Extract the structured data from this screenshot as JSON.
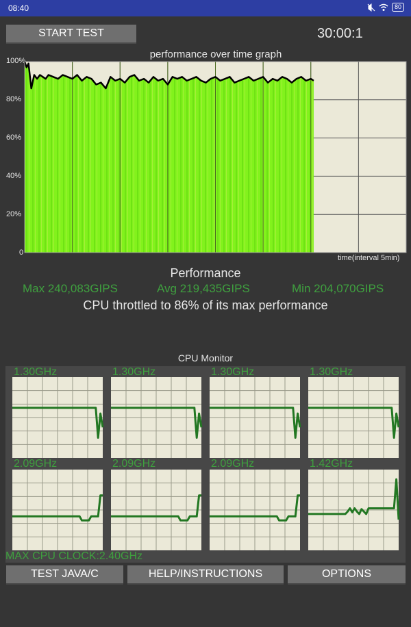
{
  "status_bar": {
    "time": "08:40",
    "battery": "80",
    "icons": [
      "mute-icon",
      "wifi-icon",
      "battery-icon"
    ]
  },
  "controls": {
    "start_label": "START TEST",
    "timer": "30:00:1"
  },
  "chart_data": {
    "type": "area",
    "title": "performance over time graph",
    "xlabel": "time(interval 5min)",
    "ylabel": "",
    "ytick_labels": [
      "100%",
      "80%",
      "60%",
      "40%",
      "20%",
      "0"
    ],
    "ylim": [
      0,
      100
    ],
    "x_total_minutes": 40,
    "x_grid_interval_minutes": 5,
    "grid": true,
    "fill_color": "#7ff020",
    "line_color": "#000000",
    "minute": [
      0,
      0.2,
      0.4,
      0.7,
      1,
      1.3,
      1.6,
      1.9,
      2.2,
      2.5,
      3,
      3.5,
      4,
      4.5,
      5,
      5.5,
      6,
      6.5,
      7,
      7.5,
      8,
      8.5,
      9,
      9.5,
      10,
      10.5,
      11,
      11.5,
      12,
      12.5,
      13,
      13.5,
      14,
      14.5,
      15,
      15.5,
      16,
      16.5,
      17,
      17.5,
      18,
      18.5,
      19,
      19.5,
      20,
      20.5,
      21,
      21.5,
      22,
      22.5,
      23,
      23.5,
      24,
      24.5,
      25,
      25.5,
      26,
      26.5,
      27,
      27.5,
      28,
      28.5,
      29,
      29.5,
      30,
      30.3
    ],
    "performance_pct": [
      100,
      97,
      99,
      86,
      93,
      91,
      93,
      92,
      91,
      93,
      92,
      91,
      93,
      92,
      91,
      93,
      90,
      92,
      91,
      88,
      89,
      86,
      92,
      90,
      91,
      89,
      92,
      93,
      90,
      91,
      89,
      92,
      90,
      91,
      88,
      92,
      91,
      92,
      90,
      91,
      92,
      90,
      89,
      91,
      92,
      90,
      91,
      92,
      89,
      90,
      91,
      92,
      90,
      91,
      92,
      89,
      91,
      90,
      92,
      91,
      89,
      91,
      92,
      90,
      91,
      90
    ]
  },
  "performance": {
    "heading": "Performance",
    "max": "Max 240,083GIPS",
    "avg": "Avg 219,435GIPS",
    "min": "Min 204,070GIPS",
    "throttle_text": "CPU throttled to 86% of its max performance"
  },
  "cpu_monitor": {
    "title": "CPU Monitor",
    "line_color": "#227722",
    "cores": [
      {
        "freq": "1.30GHz",
        "levels": [
          0.62,
          0.62,
          0.62,
          0.62,
          0.62,
          0.62,
          0.62,
          0.62,
          0.62,
          0.62,
          0.62,
          0.62,
          0.62,
          0.62,
          0.62,
          0.62,
          0.62,
          0.62,
          0.62,
          0.62,
          0.62,
          0.62,
          0.62,
          0.62,
          0.62,
          0.62,
          0.62,
          0.62,
          0.62,
          0.62,
          0.62,
          0.62,
          0.62,
          0.62,
          0.62,
          0.62,
          0.62,
          0.25,
          0.55,
          0.38
        ]
      },
      {
        "freq": "1.30GHz",
        "levels": [
          0.62,
          0.62,
          0.62,
          0.62,
          0.62,
          0.62,
          0.62,
          0.62,
          0.62,
          0.62,
          0.62,
          0.62,
          0.62,
          0.62,
          0.62,
          0.62,
          0.62,
          0.62,
          0.62,
          0.62,
          0.62,
          0.62,
          0.62,
          0.62,
          0.62,
          0.62,
          0.62,
          0.62,
          0.62,
          0.62,
          0.62,
          0.62,
          0.62,
          0.62,
          0.62,
          0.62,
          0.62,
          0.25,
          0.55,
          0.38
        ]
      },
      {
        "freq": "1.30GHz",
        "levels": [
          0.62,
          0.62,
          0.62,
          0.62,
          0.62,
          0.62,
          0.62,
          0.62,
          0.62,
          0.62,
          0.62,
          0.62,
          0.62,
          0.62,
          0.62,
          0.62,
          0.62,
          0.62,
          0.62,
          0.62,
          0.62,
          0.62,
          0.62,
          0.62,
          0.62,
          0.62,
          0.62,
          0.62,
          0.62,
          0.62,
          0.62,
          0.62,
          0.62,
          0.62,
          0.62,
          0.62,
          0.62,
          0.25,
          0.55,
          0.38
        ]
      },
      {
        "freq": "1.30GHz",
        "levels": [
          0.62,
          0.62,
          0.62,
          0.62,
          0.62,
          0.62,
          0.62,
          0.62,
          0.62,
          0.62,
          0.62,
          0.62,
          0.62,
          0.62,
          0.62,
          0.62,
          0.62,
          0.62,
          0.62,
          0.62,
          0.62,
          0.62,
          0.62,
          0.62,
          0.62,
          0.62,
          0.62,
          0.62,
          0.62,
          0.62,
          0.62,
          0.62,
          0.62,
          0.62,
          0.62,
          0.62,
          0.62,
          0.25,
          0.55,
          0.38
        ]
      },
      {
        "freq": "2.09GHz",
        "levels": [
          0.42,
          0.42,
          0.42,
          0.42,
          0.42,
          0.42,
          0.42,
          0.42,
          0.42,
          0.42,
          0.42,
          0.42,
          0.42,
          0.42,
          0.42,
          0.42,
          0.42,
          0.42,
          0.42,
          0.42,
          0.42,
          0.42,
          0.42,
          0.42,
          0.42,
          0.42,
          0.42,
          0.42,
          0.42,
          0.42,
          0.37,
          0.37,
          0.37,
          0.37,
          0.42,
          0.42,
          0.42,
          0.42,
          0.68,
          0.68
        ]
      },
      {
        "freq": "2.09GHz",
        "levels": [
          0.42,
          0.42,
          0.42,
          0.42,
          0.42,
          0.42,
          0.42,
          0.42,
          0.42,
          0.42,
          0.42,
          0.42,
          0.42,
          0.42,
          0.42,
          0.42,
          0.42,
          0.42,
          0.42,
          0.42,
          0.42,
          0.42,
          0.42,
          0.42,
          0.42,
          0.42,
          0.42,
          0.42,
          0.42,
          0.42,
          0.37,
          0.37,
          0.37,
          0.37,
          0.42,
          0.42,
          0.42,
          0.42,
          0.68,
          0.68
        ]
      },
      {
        "freq": "2.09GHz",
        "levels": [
          0.42,
          0.42,
          0.42,
          0.42,
          0.42,
          0.42,
          0.42,
          0.42,
          0.42,
          0.42,
          0.42,
          0.42,
          0.42,
          0.42,
          0.42,
          0.42,
          0.42,
          0.42,
          0.42,
          0.42,
          0.42,
          0.42,
          0.42,
          0.42,
          0.42,
          0.42,
          0.42,
          0.42,
          0.42,
          0.42,
          0.37,
          0.37,
          0.37,
          0.37,
          0.42,
          0.42,
          0.42,
          0.42,
          0.68,
          0.68
        ]
      },
      {
        "freq": "1.42GHz",
        "levels": [
          0.45,
          0.45,
          0.45,
          0.45,
          0.45,
          0.45,
          0.45,
          0.45,
          0.45,
          0.45,
          0.45,
          0.45,
          0.45,
          0.45,
          0.45,
          0.45,
          0.45,
          0.48,
          0.52,
          0.47,
          0.52,
          0.48,
          0.45,
          0.51,
          0.48,
          0.45,
          0.52,
          0.52,
          0.52,
          0.52,
          0.52,
          0.52,
          0.52,
          0.52,
          0.52,
          0.52,
          0.52,
          0.52,
          0.88,
          0.38
        ]
      }
    ]
  },
  "max_cpu_clock": "MAX CPU CLOCK:2.40GHz",
  "bottom_buttons": {
    "test": "TEST JAVA/C",
    "help": "HELP/INSTRUCTIONS",
    "options": "OPTIONS"
  }
}
